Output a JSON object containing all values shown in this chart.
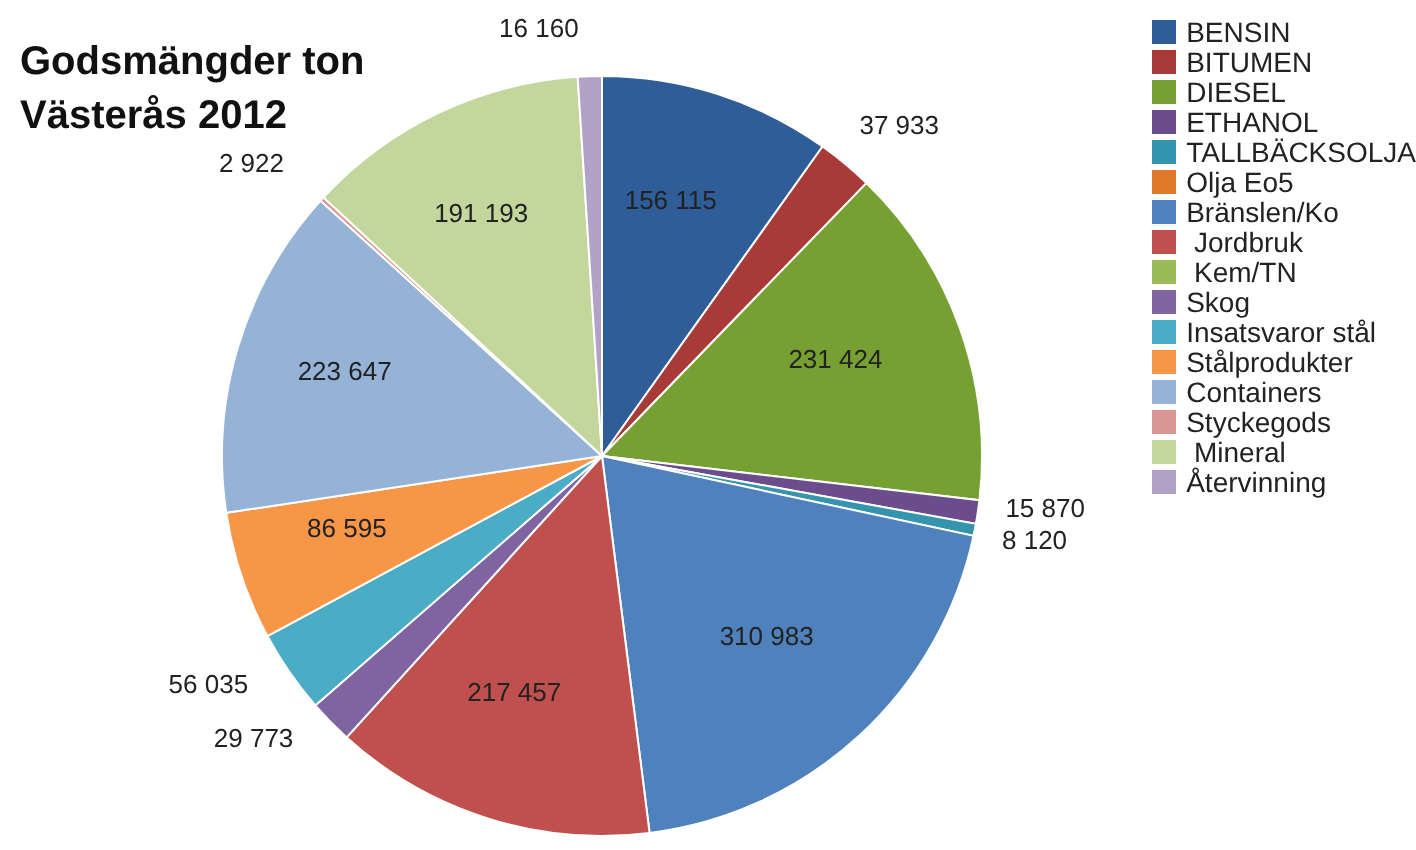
{
  "chart_data": {
    "type": "pie",
    "title": "Godsmängder ton\nVästerås 2012",
    "categories": [
      "BENSIN",
      "BITUMEN",
      "DIESEL",
      "ETHANOL",
      "TALLBÄCKSOLJA",
      "Olja Eo5",
      "Bränslen/Ko",
      " Jordbruk",
      " Kem/TN",
      "Skog",
      "Insatsvaror stål",
      "Stålprodukter",
      "Containers",
      "Styckegods",
      " Mineral",
      "Återvinning"
    ],
    "values": [
      156115,
      37933,
      231424,
      15870,
      8120,
      0,
      310983,
      217457,
      0,
      29773,
      56035,
      86595,
      223647,
      2922,
      191193,
      16160
    ],
    "value_labels": [
      "156 115",
      "37 933",
      "231 424",
      "15 870",
      "8 120",
      null,
      "310 983",
      "217 457",
      null,
      "29 773",
      "56 035",
      "86 595",
      "223 647",
      "2 922",
      "191 193",
      "16 160"
    ],
    "colors": [
      "#2f5d98",
      "#a83b37",
      "#77a032",
      "#6b4d8d",
      "#3594ad",
      "#e0782a",
      "#4f81bd",
      "#c0504d",
      "#9bbb59",
      "#8064a2",
      "#4bacc6",
      "#f79646",
      "#95b3d7",
      "#d99694",
      "#c3d69b",
      "#b3a2c7"
    ],
    "legend": "right"
  }
}
